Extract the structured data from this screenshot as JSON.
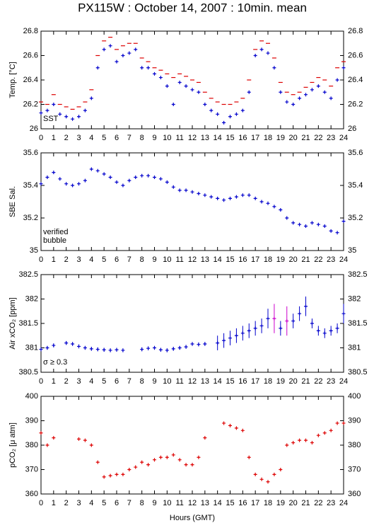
{
  "title": "PX115W : October 14, 2007 : 10min. mean",
  "chart_data": [
    {
      "type": "scatter",
      "ylabel": "Temp. [°C]",
      "x": [
        0,
        0.5,
        1,
        1.5,
        2,
        2.5,
        3,
        3.5,
        4,
        4.5,
        5,
        5.5,
        6,
        6.5,
        7,
        7.5,
        8,
        8.5,
        9,
        9.5,
        10,
        10.5,
        11,
        11.5,
        12,
        12.5,
        13,
        13.5,
        14,
        14.5,
        15,
        15.5,
        16,
        16.5,
        17,
        17.5,
        18,
        18.5,
        19,
        19.5,
        20,
        20.5,
        21,
        21.5,
        22,
        22.5,
        23,
        23.5,
        24
      ],
      "series": [
        {
          "name": "SST",
          "color": "#0000cc",
          "marker": "+",
          "values": [
            26.13,
            26.15,
            26.2,
            26.12,
            26.1,
            26.08,
            26.1,
            26.15,
            26.25,
            26.5,
            26.65,
            26.68,
            26.55,
            26.6,
            26.62,
            26.65,
            26.5,
            26.5,
            26.45,
            26.42,
            26.35,
            26.2,
            26.38,
            26.35,
            26.32,
            26.3,
            26.2,
            26.15,
            26.12,
            26.05,
            26.1,
            26.12,
            26.15,
            26.3,
            26.6,
            26.65,
            26.62,
            26.5,
            26.3,
            26.22,
            26.2,
            26.25,
            26.28,
            26.32,
            26.35,
            26.3,
            26.25,
            26.4,
            26.5
          ]
        },
        {
          "color": "#dd0000",
          "marker": "-",
          "values": [
            26.22,
            26.2,
            26.28,
            26.2,
            26.18,
            26.16,
            26.18,
            26.22,
            26.32,
            26.6,
            26.72,
            26.75,
            26.65,
            26.68,
            26.7,
            26.7,
            26.58,
            26.55,
            26.5,
            26.48,
            26.45,
            26.42,
            26.45,
            26.43,
            26.4,
            26.38,
            26.3,
            26.25,
            26.22,
            26.2,
            26.2,
            26.22,
            26.25,
            26.4,
            26.65,
            26.72,
            26.7,
            26.58,
            26.38,
            26.3,
            26.28,
            26.3,
            26.34,
            26.38,
            26.42,
            26.4,
            26.35,
            26.5,
            26.55
          ]
        }
      ],
      "xlim": [
        0,
        24
      ],
      "xticks": [
        0,
        1,
        2,
        3,
        4,
        5,
        6,
        7,
        8,
        9,
        10,
        11,
        12,
        13,
        14,
        15,
        16,
        17,
        18,
        19,
        20,
        21,
        22,
        23,
        24
      ],
      "ylim": [
        26,
        26.8
      ],
      "yticks": [
        26,
        26.2,
        26.4,
        26.6,
        26.8
      ]
    },
    {
      "type": "scatter",
      "ylabel": "SBE Sal.",
      "x": [
        0,
        0.5,
        1,
        1.5,
        2,
        2.5,
        3,
        3.5,
        4,
        4.5,
        5,
        5.5,
        6,
        6.5,
        7,
        7.5,
        8,
        8.5,
        9,
        9.5,
        10,
        10.5,
        11,
        11.5,
        12,
        12.5,
        13,
        13.5,
        14,
        14.5,
        15,
        15.5,
        16,
        16.5,
        17,
        17.5,
        18,
        18.5,
        19,
        19.5,
        20,
        20.5,
        21,
        21.5,
        22,
        22.5,
        23,
        23.5,
        24
      ],
      "series": [
        {
          "name": "verified",
          "color": "#0000cc",
          "marker": "+",
          "values": [
            35.41,
            35.45,
            35.48,
            35.44,
            35.41,
            35.4,
            35.41,
            35.43,
            35.5,
            35.49,
            35.47,
            35.45,
            35.42,
            35.4,
            35.43,
            35.45,
            35.46,
            35.46,
            35.45,
            35.44,
            35.42,
            35.39,
            35.37,
            35.37,
            35.36,
            35.35,
            35.34,
            35.33,
            35.32,
            35.31,
            35.32,
            35.33,
            35.34,
            35.34,
            35.32,
            35.3,
            35.29,
            35.27,
            35.25,
            35.2,
            35.17,
            35.16,
            35.15,
            35.17,
            35.16,
            35.15,
            35.12,
            35.11,
            35.18
          ]
        },
        {
          "name": "bubble",
          "color": "#cc00cc",
          "marker": "+",
          "values": [
            null,
            null,
            null,
            null,
            null,
            null,
            null,
            null,
            null,
            null,
            null,
            null,
            null,
            null,
            null,
            null,
            null,
            null,
            null,
            null,
            null,
            null,
            null,
            null,
            null,
            null,
            null,
            null,
            null,
            null,
            null,
            null,
            null,
            null,
            null,
            null,
            null,
            null,
            null,
            null,
            null,
            null,
            null,
            null,
            null,
            null,
            null,
            null,
            null
          ]
        }
      ],
      "xlim": [
        0,
        24
      ],
      "xticks": [
        0,
        1,
        2,
        3,
        4,
        5,
        6,
        7,
        8,
        9,
        10,
        11,
        12,
        13,
        14,
        15,
        16,
        17,
        18,
        19,
        20,
        21,
        22,
        23,
        24
      ],
      "ylim": [
        35,
        35.6
      ],
      "yticks": [
        35,
        35.2,
        35.4,
        35.6
      ]
    },
    {
      "type": "scatter",
      "ylabel": "Air xCO₂ [ppm]",
      "x": [
        0,
        0.5,
        1,
        1.5,
        2,
        2.5,
        3,
        3.5,
        4,
        4.5,
        5,
        5.5,
        6,
        6.5,
        7,
        7.5,
        8,
        8.5,
        9,
        9.5,
        10,
        10.5,
        11,
        11.5,
        12,
        12.5,
        13,
        13.5,
        14,
        14.5,
        15,
        15.5,
        16,
        16.5,
        17,
        17.5,
        18,
        18.5,
        19,
        19.5,
        20,
        20.5,
        21,
        21.5,
        22,
        22.5,
        23,
        23.5,
        24
      ],
      "series": [
        {
          "color": "#0000cc",
          "marker": "+",
          "values": [
            380.97,
            381.0,
            381.05,
            null,
            381.1,
            381.08,
            381.03,
            381.0,
            380.98,
            380.97,
            380.96,
            380.95,
            380.96,
            380.95,
            null,
            null,
            380.97,
            380.99,
            381.0,
            380.96,
            380.95,
            380.98,
            381.0,
            381.02,
            381.08,
            381.07,
            381.08,
            null,
            381.1,
            381.15,
            381.2,
            381.25,
            381.3,
            381.35,
            381.4,
            381.45,
            381.6,
            null,
            381.4,
            null,
            381.55,
            381.7,
            381.85,
            381.5,
            381.35,
            381.3,
            381.35,
            381.4,
            381.7
          ],
          "errors": [
            0.04,
            0.04,
            0.04,
            null,
            0.04,
            0.04,
            0.04,
            0.04,
            0.04,
            0.04,
            0.04,
            0.04,
            0.04,
            0.04,
            null,
            null,
            0.04,
            0.04,
            0.04,
            0.04,
            0.04,
            0.04,
            0.04,
            0.04,
            0.04,
            0.04,
            0.04,
            null,
            0.15,
            0.15,
            0.15,
            0.15,
            0.15,
            0.15,
            0.15,
            0.15,
            0.2,
            null,
            0.15,
            null,
            0.15,
            0.15,
            0.2,
            0.1,
            0.1,
            0.1,
            0.1,
            0.1,
            0.2
          ]
        },
        {
          "name": "σ ≥ 0.3",
          "color": "#cc00cc",
          "marker": "+",
          "values": [
            null,
            null,
            null,
            null,
            null,
            null,
            null,
            null,
            null,
            null,
            null,
            null,
            null,
            null,
            null,
            null,
            null,
            null,
            null,
            null,
            null,
            null,
            null,
            null,
            null,
            null,
            null,
            null,
            null,
            null,
            null,
            null,
            null,
            null,
            null,
            null,
            null,
            381.6,
            null,
            381.55,
            null,
            null,
            null,
            null,
            null,
            null,
            null,
            null,
            null
          ],
          "errors": [
            null,
            null,
            null,
            null,
            null,
            null,
            null,
            null,
            null,
            null,
            null,
            null,
            null,
            null,
            null,
            null,
            null,
            null,
            null,
            null,
            null,
            null,
            null,
            null,
            null,
            null,
            null,
            null,
            null,
            null,
            null,
            null,
            null,
            null,
            null,
            null,
            null,
            0.3,
            null,
            0.3,
            null,
            null,
            null,
            null,
            null,
            null,
            null,
            null,
            null
          ]
        }
      ],
      "xlim": [
        0,
        24
      ],
      "xticks": [
        0,
        1,
        2,
        3,
        4,
        5,
        6,
        7,
        8,
        9,
        10,
        11,
        12,
        13,
        14,
        15,
        16,
        17,
        18,
        19,
        20,
        21,
        22,
        23,
        24
      ],
      "ylim": [
        380.5,
        382.5
      ],
      "yticks": [
        380.5,
        381,
        381.5,
        382,
        382.5
      ]
    },
    {
      "type": "scatter",
      "ylabel": "pCO₂ [μ atm]",
      "xlabel": "Hours (GMT)",
      "x": [
        0,
        0.5,
        1,
        1.5,
        2,
        2.5,
        3,
        3.5,
        4,
        4.5,
        5,
        5.5,
        6,
        6.5,
        7,
        7.5,
        8,
        8.5,
        9,
        9.5,
        10,
        10.5,
        11,
        11.5,
        12,
        12.5,
        13,
        13.5,
        14,
        14.5,
        15,
        15.5,
        16,
        16.5,
        17,
        17.5,
        18,
        18.5,
        19,
        19.5,
        20,
        20.5,
        21,
        21.5,
        22,
        22.5,
        23,
        23.5,
        24
      ],
      "series": [
        {
          "color": "#dd0000",
          "marker": "+",
          "values": [
            385,
            380,
            383,
            null,
            null,
            null,
            382.5,
            382,
            380,
            373,
            367,
            367.5,
            368,
            368,
            370,
            371,
            373,
            372,
            374,
            375,
            375,
            376,
            374,
            372,
            372,
            375,
            383,
            null,
            null,
            389,
            388,
            387,
            386,
            375,
            368,
            366,
            365,
            368,
            370,
            380,
            381,
            382,
            382,
            381,
            384,
            385,
            386,
            389,
            389
          ]
        }
      ],
      "xlim": [
        0,
        24
      ],
      "xticks": [
        0,
        1,
        2,
        3,
        4,
        5,
        6,
        7,
        8,
        9,
        10,
        11,
        12,
        13,
        14,
        15,
        16,
        17,
        18,
        19,
        20,
        21,
        22,
        23,
        24
      ],
      "ylim": [
        360,
        400
      ],
      "yticks": [
        360,
        370,
        380,
        390,
        400
      ]
    }
  ]
}
